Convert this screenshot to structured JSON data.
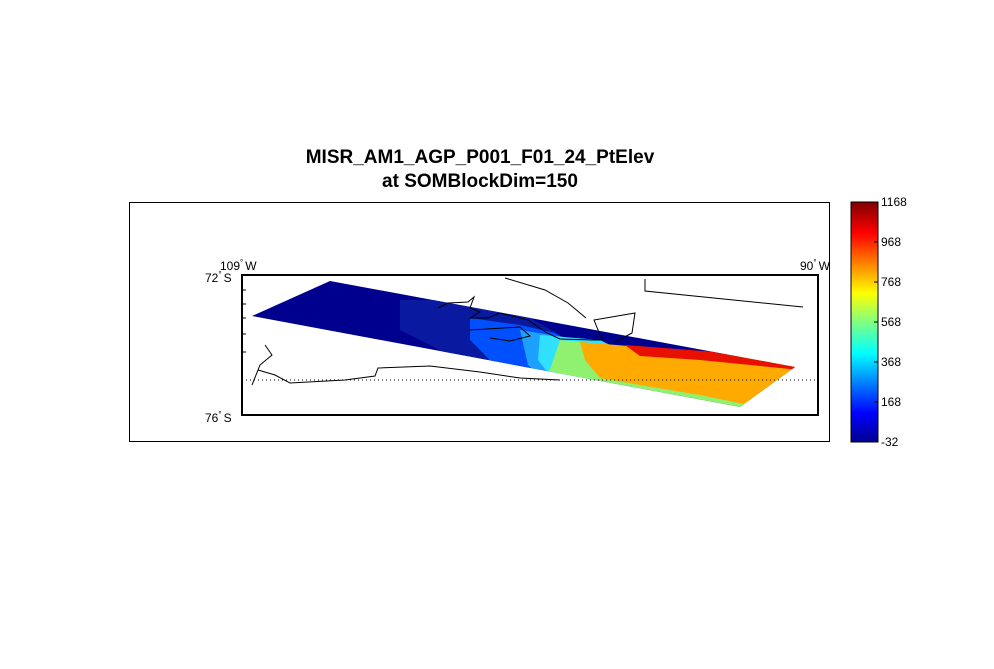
{
  "title": {
    "line1": "MISR_AM1_AGP_P001_F01_24_PtElev",
    "line2": "at SOMBlockDim=150"
  },
  "map": {
    "lon_labels": [
      {
        "deg": "109",
        "hemi": "W"
      },
      {
        "deg": "90",
        "hemi": "W"
      }
    ],
    "lat_labels": [
      {
        "deg": "72",
        "hemi": "S"
      },
      {
        "deg": "76",
        "hemi": "S"
      }
    ],
    "degree_symbol": "°"
  },
  "colorbar": {
    "min": -32,
    "max": 1168,
    "ticks": [
      "1168",
      "968",
      "768",
      "568",
      "368",
      "168",
      "-32"
    ],
    "colormap": "jet"
  },
  "colors": {
    "dark_blue": "#00008f",
    "navy": "#0a1aa0",
    "blue": "#0050ff",
    "light_blue": "#1ea0ff",
    "cyan": "#30e0ff",
    "green": "#90f070",
    "orange": "#ffaa00",
    "red": "#e81000"
  }
}
